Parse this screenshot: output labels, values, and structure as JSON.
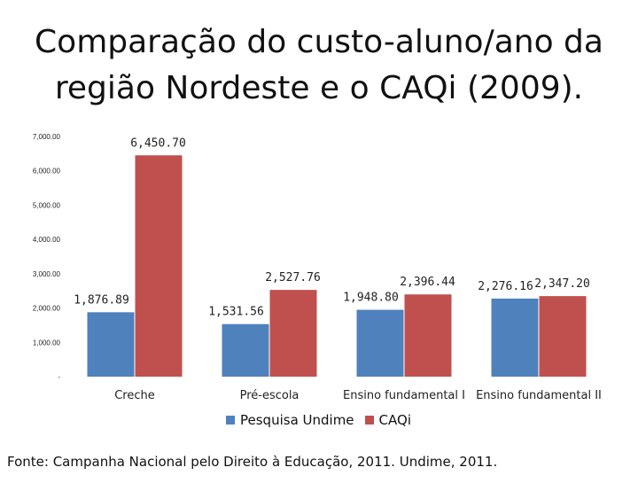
{
  "title": "Comparação do custo-aluno/ano da região Nordeste e o CAQi (2009).",
  "source": "Fonte: Campanha Nacional pelo Direito à Educação, 2011. Undime, 2011.",
  "chart_data": {
    "type": "bar",
    "categories": [
      "Creche",
      "Pré-escola",
      "Ensino fundamental I",
      "Ensino fundamental II"
    ],
    "series": [
      {
        "name": "Pesquisa Undime",
        "values": [
          1876.89,
          1531.56,
          1948.8,
          2276.16
        ],
        "labels": [
          "1,876.89",
          "1,531.56",
          "1,948.80",
          "2,276.16"
        ],
        "color": "#4F81BD"
      },
      {
        "name": "CAQi",
        "values": [
          6450.7,
          2527.76,
          2396.44,
          2347.2
        ],
        "labels": [
          "6,450.70",
          "2,527.76",
          "2,396.44",
          "2,347.20"
        ],
        "color": "#C0504D"
      }
    ],
    "ylim": [
      0,
      7000
    ],
    "yticks": [
      0,
      1000,
      2000,
      3000,
      4000,
      5000,
      6000,
      7000
    ],
    "ytick_labels": [
      "-",
      "1,000.00",
      "2,000.00",
      "3,000.00",
      "4,000.00",
      "5,000.00",
      "6,000.00",
      "7,000.00"
    ],
    "grid": false,
    "legend": "bottom"
  }
}
